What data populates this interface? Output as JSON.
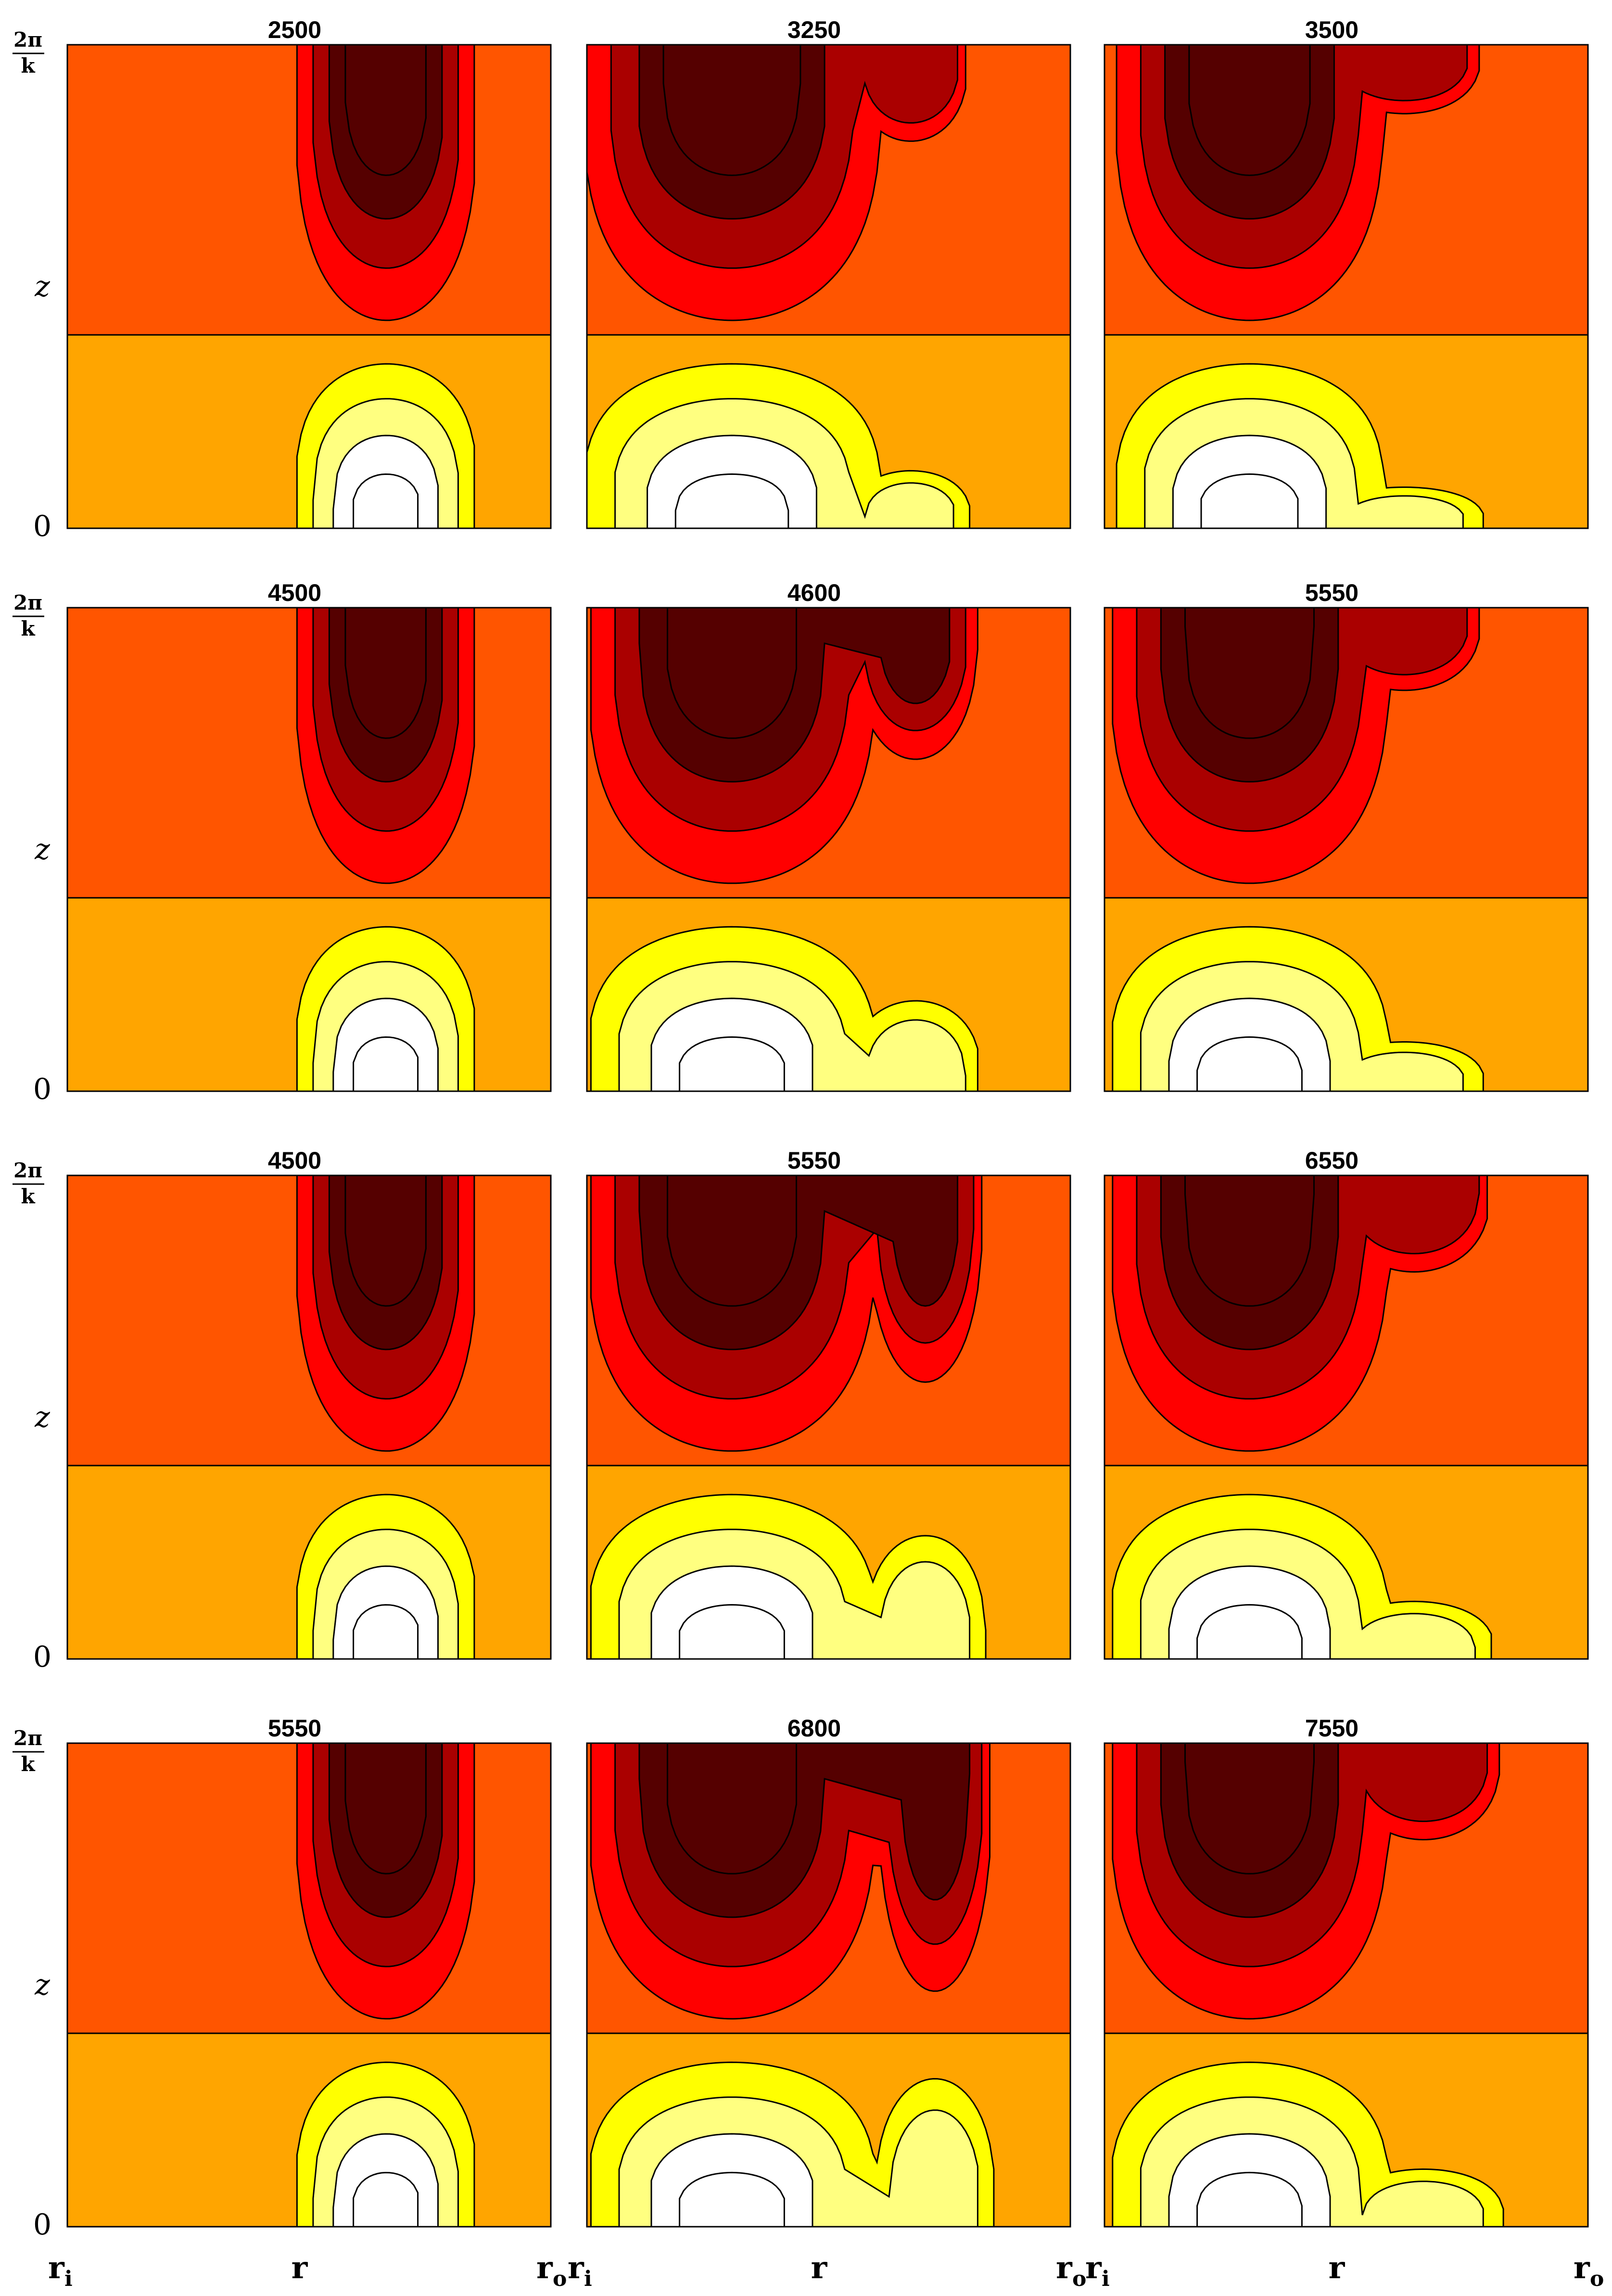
{
  "chart_data": {
    "type": "heatmap",
    "description_kind": "contour",
    "grid": false,
    "legend": "none",
    "colors": {
      "top_background": "#FF5500",
      "bottom_background": "#FFA500",
      "neg_levels": [
        "#FF0000",
        "#AA0000",
        "#550000"
      ],
      "pos_levels": [
        "#FFFF00",
        "#FFFF80",
        "#FFFFFF"
      ],
      "contour_line": "#000000"
    },
    "axes": {
      "y_tick_bottom": "0",
      "y_tick_top_num": "2π",
      "y_tick_top_den": "k",
      "y_label": "z",
      "x_tick_left": "r",
      "x_tick_left_sub": "i",
      "x_label": "r",
      "x_tick_right": "r",
      "x_tick_right_sub": "o"
    },
    "panels": [
      {
        "title": "2500",
        "row": 0,
        "col": 0
      },
      {
        "title": "3250",
        "row": 0,
        "col": 1
      },
      {
        "title": "3500",
        "row": 0,
        "col": 2
      },
      {
        "title": "4500",
        "row": 1,
        "col": 0
      },
      {
        "title": "4600",
        "row": 1,
        "col": 1
      },
      {
        "title": "5550",
        "row": 1,
        "col": 2
      },
      {
        "title": "4500",
        "row": 2,
        "col": 0
      },
      {
        "title": "5550",
        "row": 2,
        "col": 1
      },
      {
        "title": "6550",
        "row": 2,
        "col": 2
      },
      {
        "title": "5550",
        "row": 3,
        "col": 0
      },
      {
        "title": "6800",
        "row": 3,
        "col": 1
      },
      {
        "title": "7550",
        "row": 3,
        "col": 2
      }
    ]
  }
}
